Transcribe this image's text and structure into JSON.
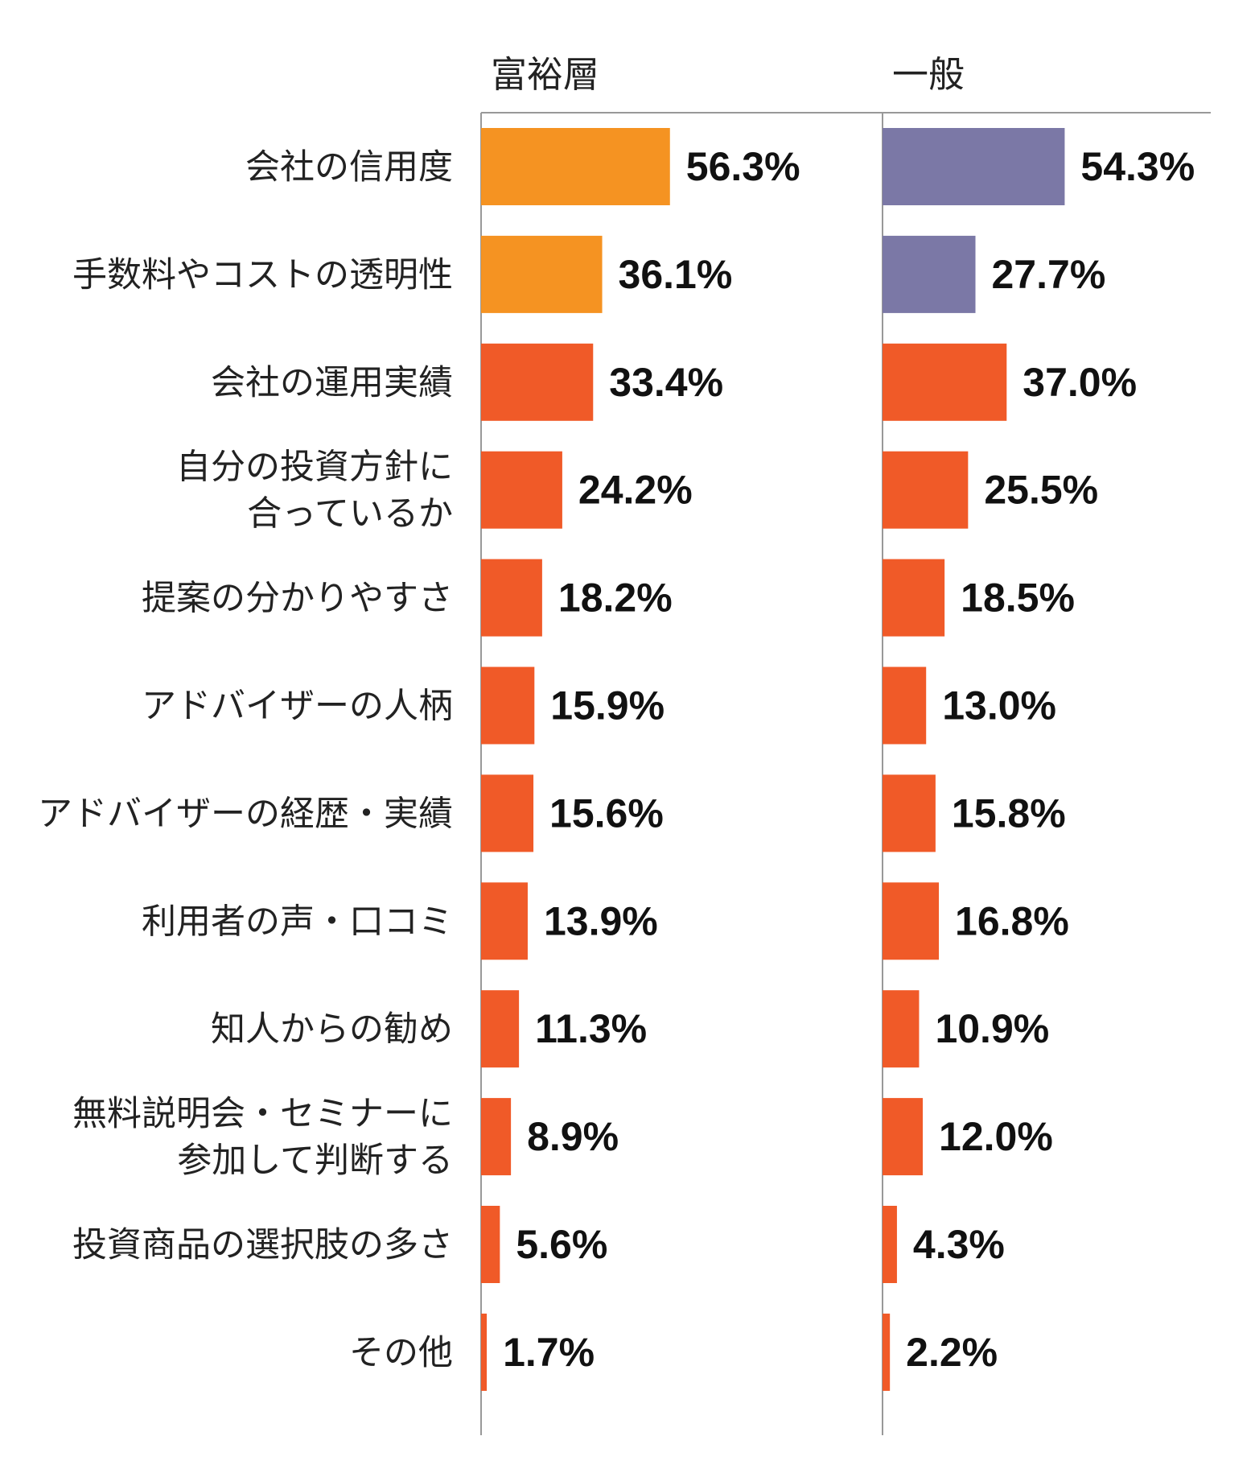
{
  "chart_data": {
    "type": "bar",
    "orientation": "horizontal",
    "title": "",
    "xlabel": "",
    "ylabel": "",
    "categories": [
      [
        "会社の信用度"
      ],
      [
        "手数料やコストの透明性"
      ],
      [
        "会社の運用実績"
      ],
      [
        "自分の投資方針に",
        "合っているか"
      ],
      [
        "提案の分かりやすさ"
      ],
      [
        "アドバイザーの人柄"
      ],
      [
        "アドバイザーの経歴・実績"
      ],
      [
        "利用者の声・口コミ"
      ],
      [
        "知人からの勧め"
      ],
      [
        "無料説明会・セミナーに",
        "参加して判断する"
      ],
      [
        "投資商品の選択肢の多さ"
      ],
      [
        "その他"
      ]
    ],
    "series": [
      {
        "name": "富裕層",
        "values": [
          56.3,
          36.1,
          33.4,
          24.2,
          18.2,
          15.9,
          15.6,
          13.9,
          11.3,
          8.9,
          5.6,
          1.7
        ],
        "value_labels": [
          "56.3%",
          "36.1%",
          "33.4%",
          "24.2%",
          "18.2%",
          "15.9%",
          "15.6%",
          "13.9%",
          "11.3%",
          "8.9%",
          "5.6%",
          "1.7%"
        ],
        "highlight_color": "#F59322",
        "highlight_count": 2
      },
      {
        "name": "一般",
        "values": [
          54.3,
          27.7,
          37.0,
          25.5,
          18.5,
          13.0,
          15.8,
          16.8,
          10.9,
          12.0,
          4.3,
          2.2
        ],
        "value_labels": [
          "54.3%",
          "27.7%",
          "37.0%",
          "25.5%",
          "18.5%",
          "13.0%",
          "15.8%",
          "16.8%",
          "10.9%",
          "12.0%",
          "4.3%",
          "2.2%"
        ],
        "highlight_color": "#7B78A6",
        "highlight_count": 2
      }
    ],
    "default_bar_color": "#F05A28",
    "axis_line_color": "#999999",
    "xlim": [
      0,
      100
    ],
    "grid": false,
    "legend": "none"
  }
}
